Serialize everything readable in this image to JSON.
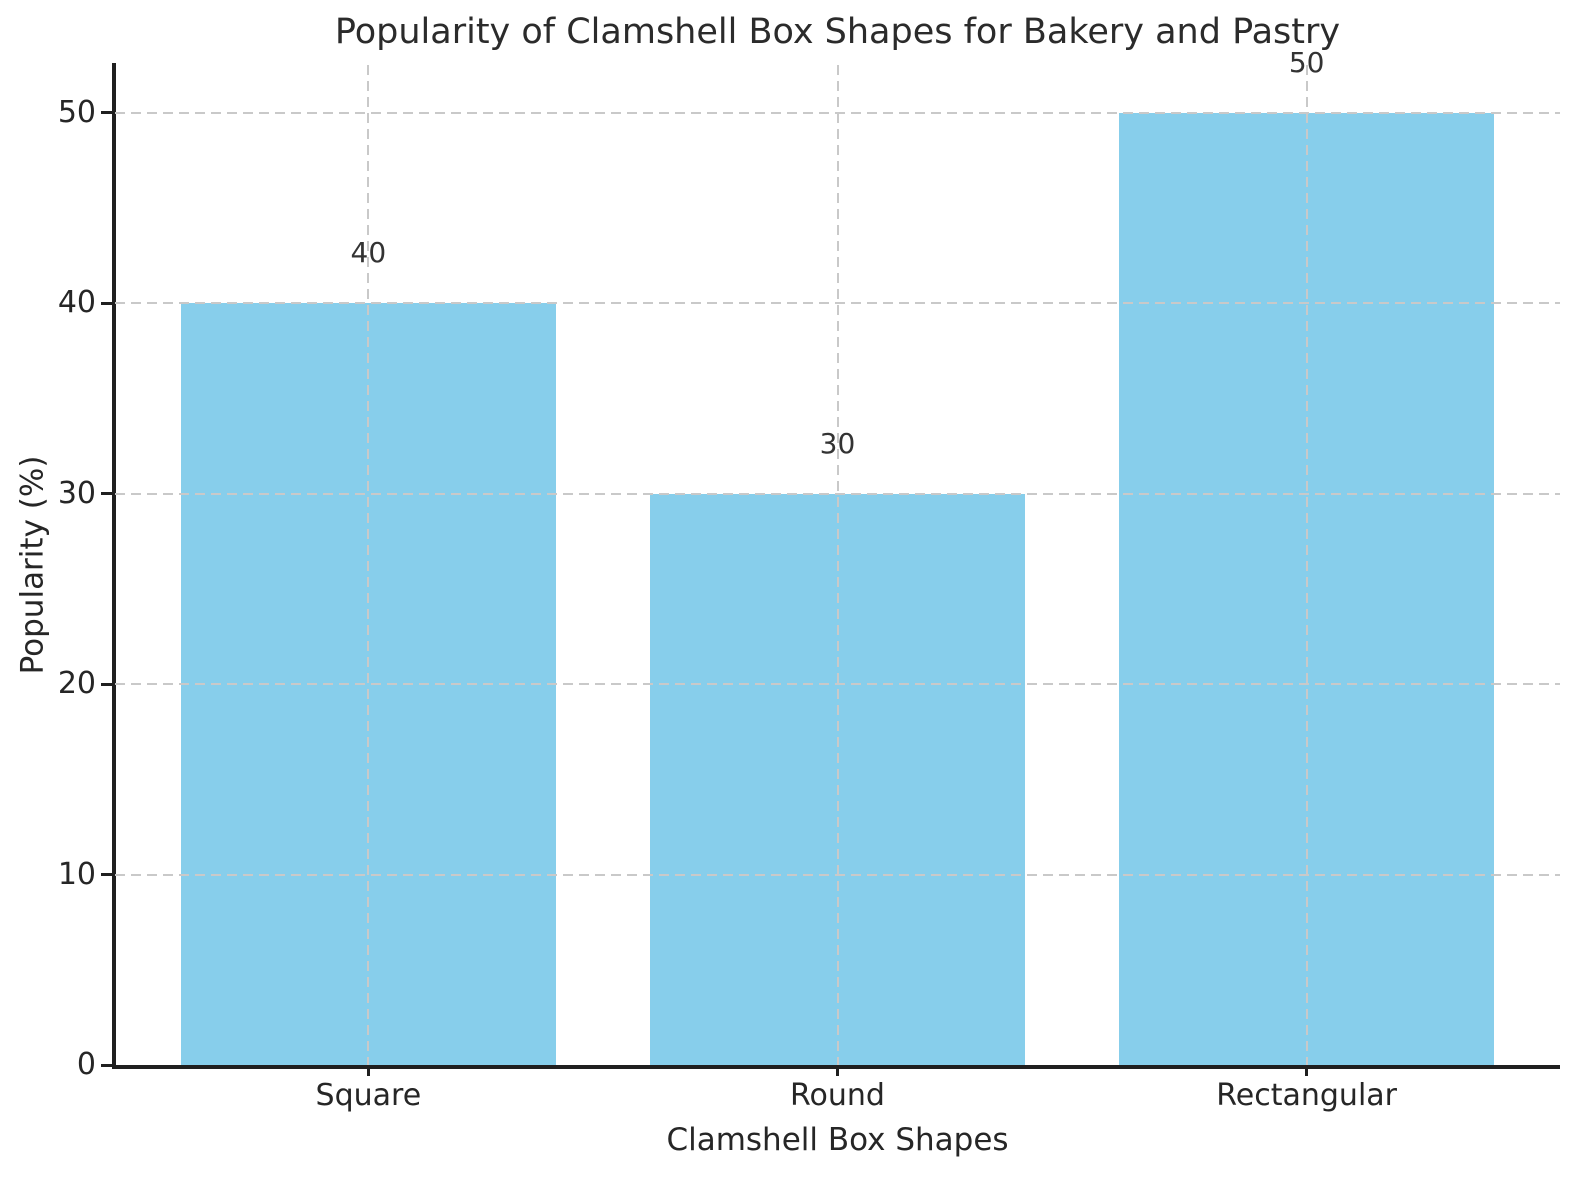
{
  "chart_data": {
    "type": "bar",
    "title": "Popularity of Clamshell Box Shapes for Bakery and Pastry",
    "xlabel": "Clamshell Box Shapes",
    "ylabel": "Popularity (%)",
    "categories": [
      "Square",
      "Round",
      "Rectangular"
    ],
    "values": [
      40,
      30,
      50
    ],
    "bar_labels": [
      "40",
      "30",
      "50"
    ],
    "bar_color": "#87CEEB",
    "yticks": [
      0,
      10,
      20,
      30,
      40,
      50
    ],
    "ylim": [
      0,
      52.5
    ],
    "xlim": [
      -0.54,
      2.54
    ],
    "bar_width_units": 0.8,
    "grid": true,
    "grid_style": "dashed",
    "grid_color": "#c9c9c9",
    "grid_over_bars": true,
    "legend": "none",
    "text_color": "#262626",
    "spine_color": "#1f1f1f",
    "background_color": "#ffffff",
    "visible_spines": [
      "left",
      "bottom"
    ]
  }
}
